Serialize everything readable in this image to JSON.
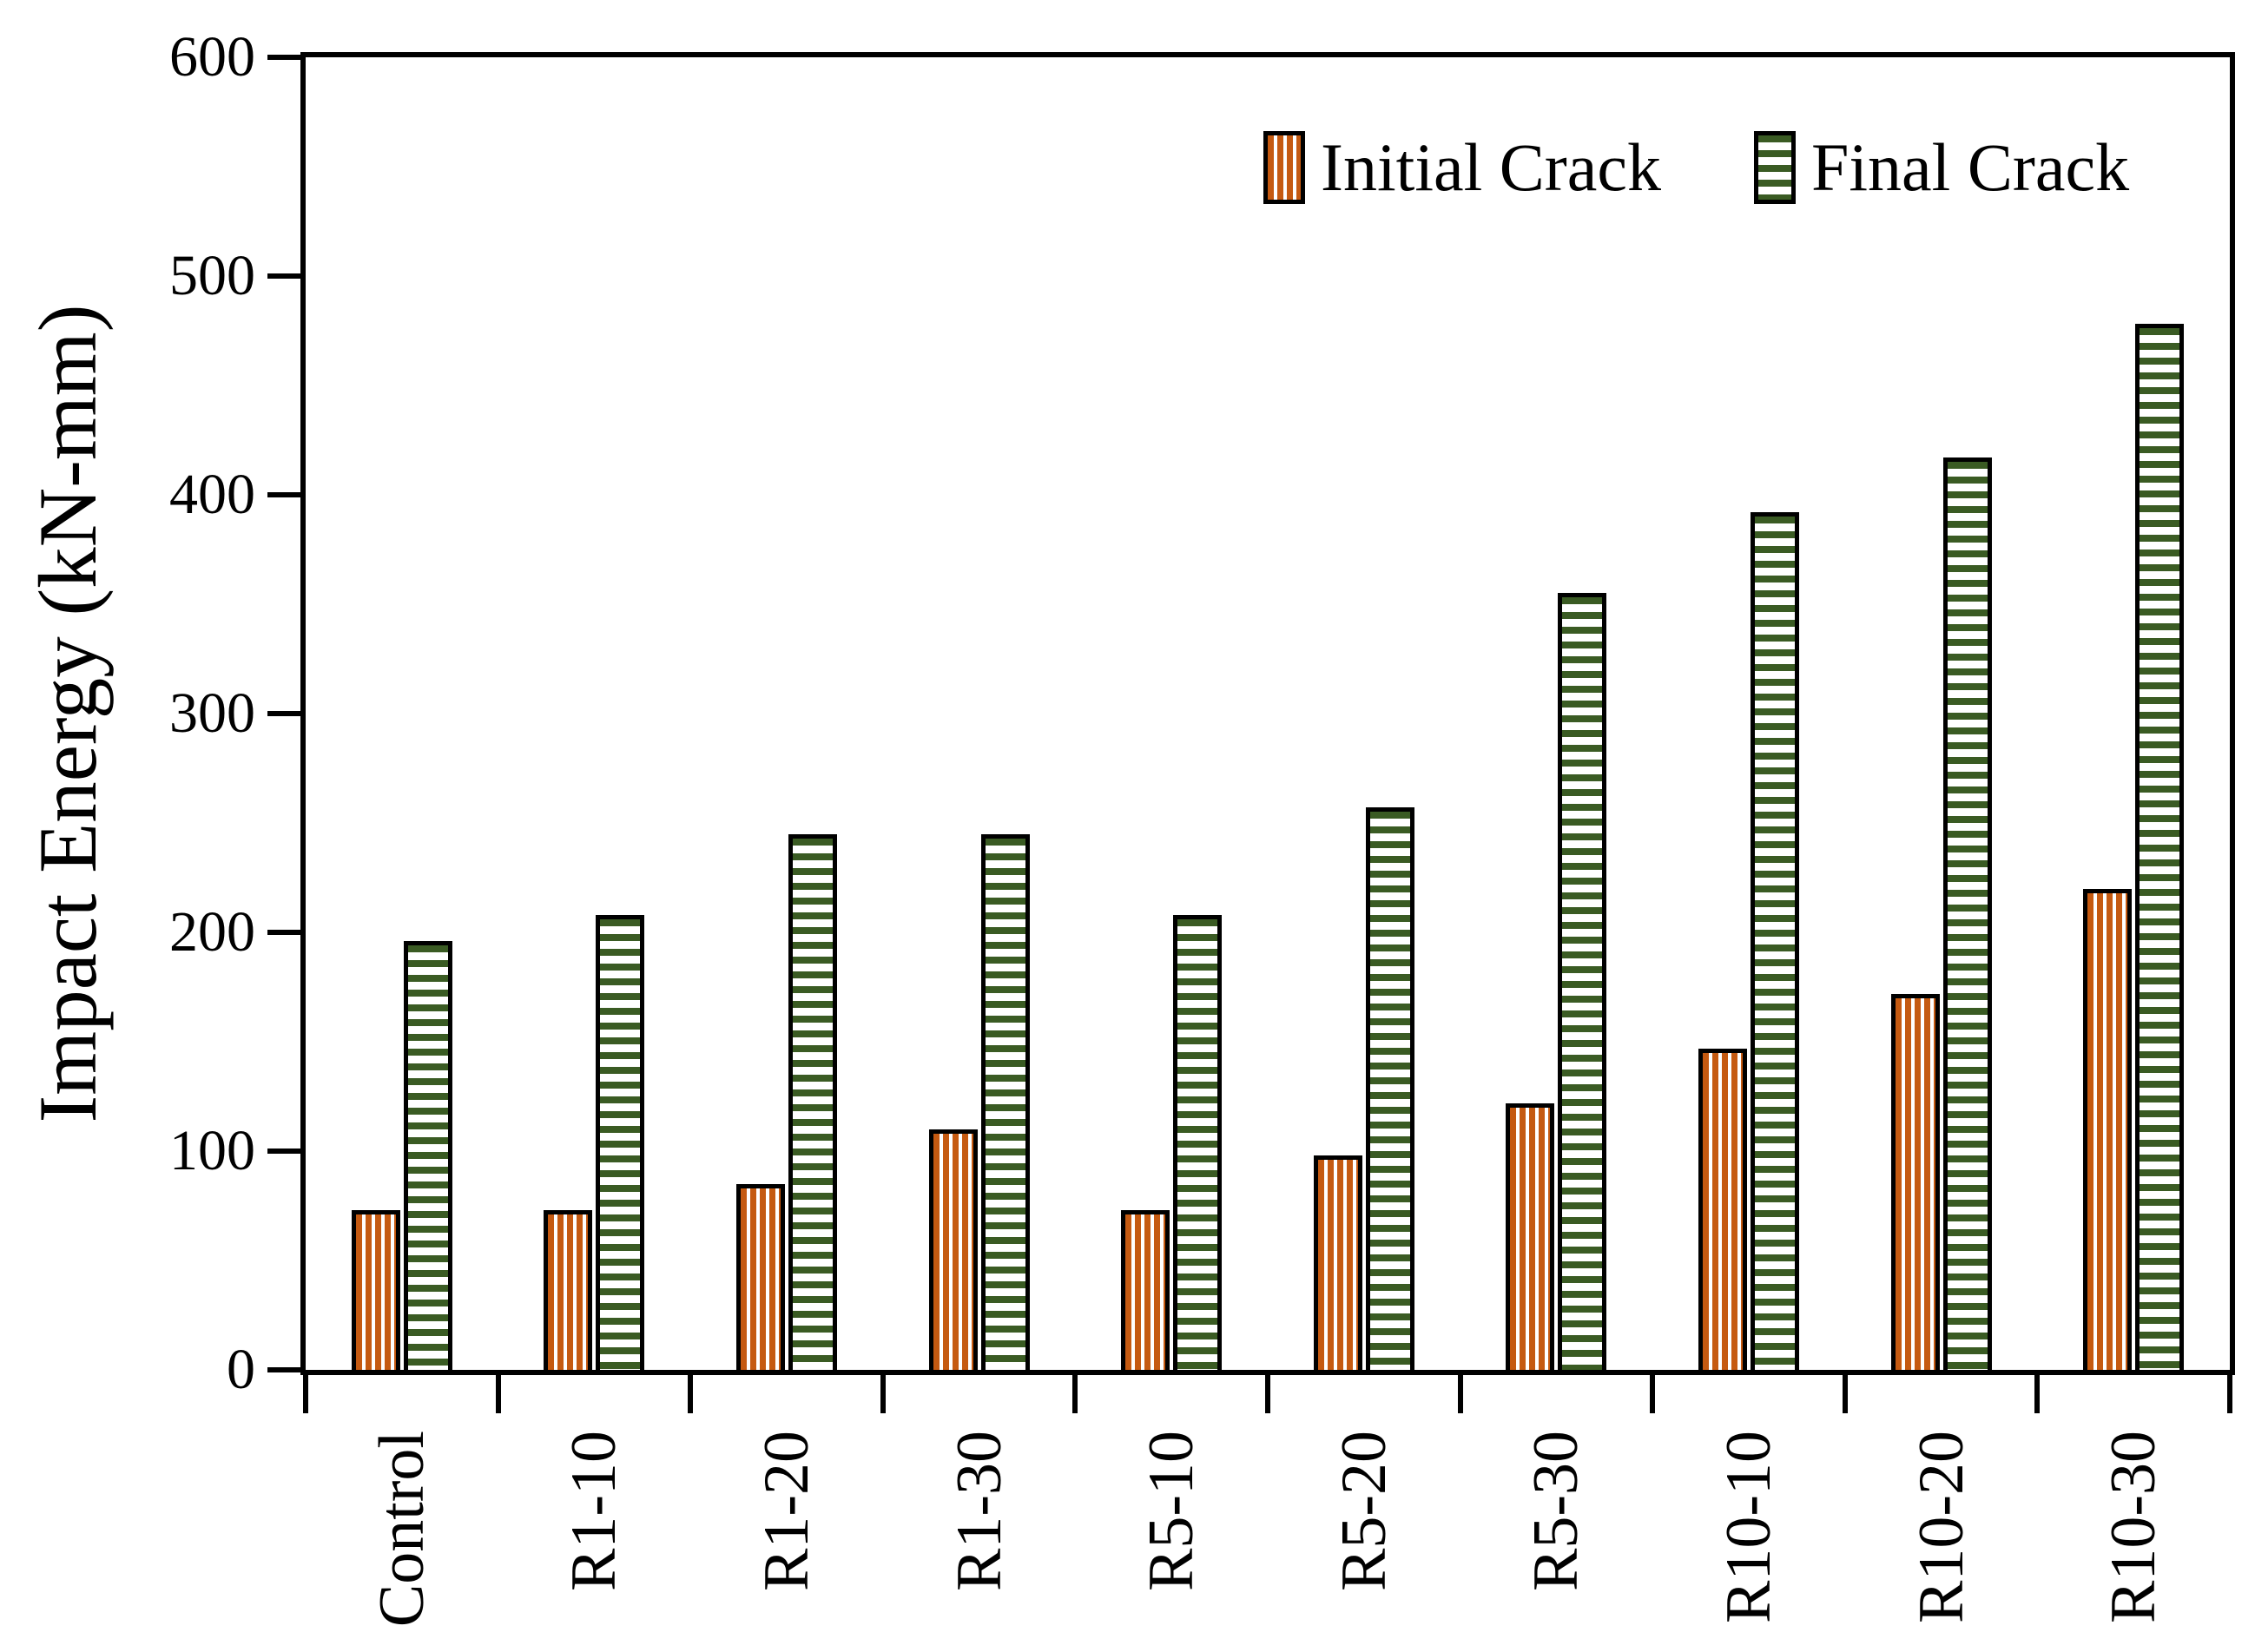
{
  "chart_data": {
    "type": "bar",
    "title": "",
    "xlabel": "",
    "ylabel": "Impact Energy (kN-mm)",
    "ylim": [
      0,
      600
    ],
    "ytick_step": 100,
    "yticks": [
      0,
      100,
      200,
      300,
      400,
      500,
      600
    ],
    "grid": false,
    "plot_frame": true,
    "legend_position": "top-right-inside",
    "axis_color": "#000000",
    "background_color": "#ffffff",
    "categories": [
      "Control",
      "R1-10",
      "R1-20",
      "R1-30",
      "R5-10",
      "R5-20",
      "R5-30",
      "R10-10",
      "R10-20",
      "R10-30"
    ],
    "series": [
      {
        "name": "Initial Crack",
        "color": "#C55A11",
        "pattern": "vertical-stripes",
        "values": [
          73,
          73,
          85,
          110,
          73,
          98,
          122,
          147,
          172,
          220
        ]
      },
      {
        "name": "Final Crack",
        "color": "#3A5B23",
        "pattern": "horizontal-stripes",
        "values": [
          196,
          208,
          245,
          245,
          208,
          257,
          355,
          392,
          417,
          478
        ]
      }
    ]
  }
}
